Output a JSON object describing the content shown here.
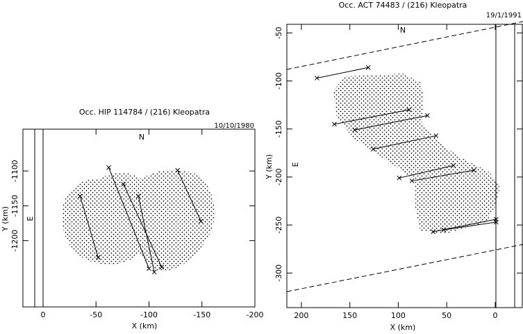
{
  "chart_data": [
    {
      "type": "line",
      "title": "Occ. HIP 114784 / (216) Kleopatra",
      "date": "10/10/1980",
      "north": "N",
      "east": "E",
      "x_label": "X (km)",
      "y_label": "Y (km)",
      "xlim": [
        19,
        -200
      ],
      "xticks": [
        0,
        -50,
        -100,
        -150,
        -200
      ],
      "ylim": [
        -1295,
        -1040
      ],
      "yticks": [
        -1100,
        -1150,
        -1200
      ],
      "color": "#000000",
      "series": [
        {
          "x": [
            -35,
            -52
          ],
          "values": [
            -1136,
            -1224
          ]
        },
        {
          "x": [
            -62,
            -100
          ],
          "values": [
            -1095,
            -1240
          ]
        },
        {
          "x": [
            -76,
            -112
          ],
          "values": [
            -1119,
            -1238
          ]
        },
        {
          "x": [
            -90,
            -105
          ],
          "values": [
            -1136,
            -1245
          ]
        },
        {
          "x": [
            -127,
            -149
          ],
          "values": [
            -1099,
            -1172
          ]
        }
      ]
    },
    {
      "type": "line",
      "title": "Occ. ACT 74483 / (216) Kleopatra",
      "date": "19/1/1991",
      "north": "N",
      "east": "E",
      "x_label": "X (km)",
      "y_label": "Y (km)",
      "xlim": [
        215,
        -28
      ],
      "xticks": [
        200,
        150,
        100,
        50,
        0
      ],
      "ylim": [
        -336,
        -41
      ],
      "yticks": [
        -50,
        -100,
        -150,
        -200,
        -250,
        -300
      ],
      "color": "#000000",
      "series": [
        {
          "x": [
            184,
            131
          ],
          "values": [
            -97,
            -86
          ]
        },
        {
          "x": [
            166,
            89
          ],
          "values": [
            -145,
            -130
          ]
        },
        {
          "x": [
            145,
            70
          ],
          "values": [
            -151,
            -136
          ]
        },
        {
          "x": [
            126,
            61
          ],
          "values": [
            -171,
            -157
          ]
        },
        {
          "x": [
            99,
            43
          ],
          "values": [
            -201,
            -188
          ]
        },
        {
          "x": [
            86,
            22
          ],
          "values": [
            -204,
            -193
          ]
        },
        {
          "x": [
            64,
            -1
          ],
          "values": [
            -257,
            -244
          ]
        },
        {
          "x": [
            53,
            -1
          ],
          "values": [
            -255,
            -247
          ]
        }
      ]
    }
  ]
}
